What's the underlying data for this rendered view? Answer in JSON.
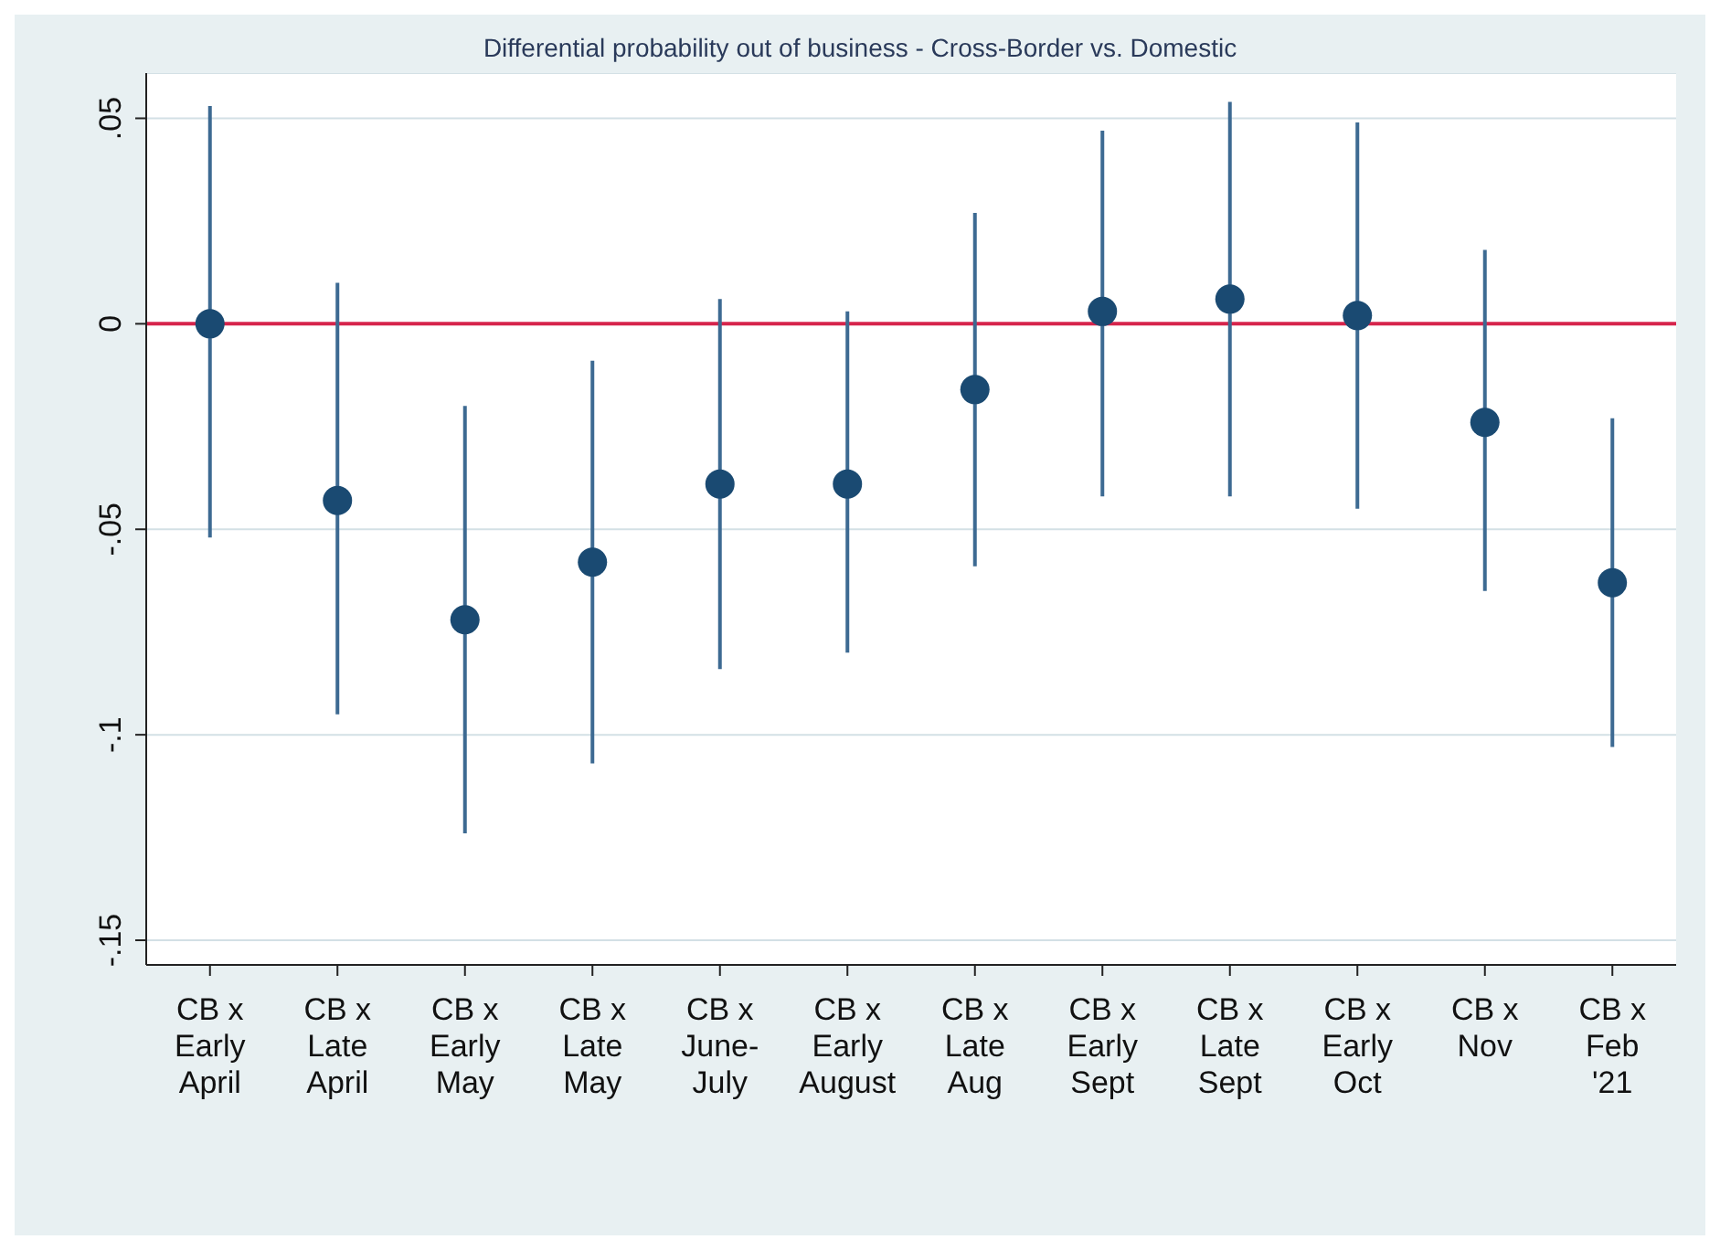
{
  "chart_data": {
    "type": "scatter",
    "title": "Differential probability out of business - Cross-Border vs. Domestic",
    "categories": [
      "CB x Early April",
      "CB x Late April",
      "CB x Early May",
      "CB x Late May",
      "CB x June-July",
      "CB x Early August",
      "CB x Late Aug",
      "CB x Early Sept",
      "CB x Late Sept",
      "CB x Early Oct",
      "CB x Nov",
      "CB x Feb '21"
    ],
    "series": [
      {
        "color": "#1a4a72",
        "values": [
          0.0,
          -0.043,
          -0.072,
          -0.058,
          -0.039,
          -0.039,
          -0.016,
          0.003,
          0.006,
          0.002,
          -0.024,
          -0.063
        ],
        "errors": [
          [
            -0.052,
            0.053
          ],
          [
            -0.095,
            0.01
          ],
          [
            -0.124,
            -0.02
          ],
          [
            -0.107,
            -0.009
          ],
          [
            -0.084,
            0.006
          ],
          [
            -0.08,
            0.003
          ],
          [
            -0.059,
            0.027
          ],
          [
            -0.042,
            0.047
          ],
          [
            -0.042,
            0.054
          ],
          [
            -0.045,
            0.049
          ],
          [
            -0.065,
            0.018
          ],
          [
            -0.103,
            -0.023
          ]
        ]
      }
    ],
    "ylim": [
      -0.156,
      0.061
    ],
    "yticks": [
      {
        "value": 0.05,
        "label": ".05"
      },
      0,
      {
        "value": -0.05,
        "label": "-.05"
      },
      {
        "value": -0.1,
        "label": "-.1"
      },
      {
        "value": -0.15,
        "label": "-.15"
      }
    ],
    "grid": "y",
    "marker": "circle",
    "ref_lines": [
      {
        "axis": "y",
        "value": 0,
        "color": "#d6244c"
      }
    ]
  }
}
